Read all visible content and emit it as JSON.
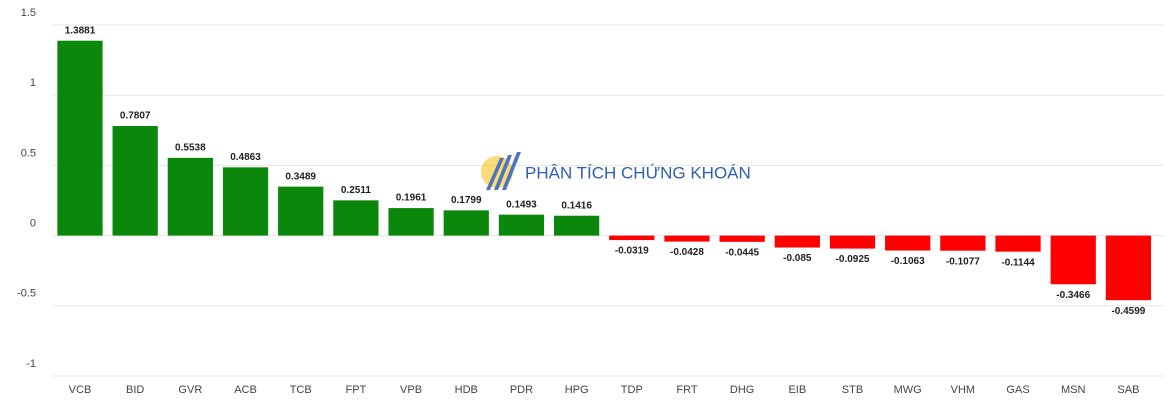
{
  "chart_data": {
    "type": "bar",
    "watermark": "PHÂN TÍCH CHỨNG KHOÁN",
    "categories": [
      "VCB",
      "BID",
      "GVR",
      "ACB",
      "TCB",
      "FPT",
      "VPB",
      "HDB",
      "PDR",
      "HPG",
      "TDP",
      "FRT",
      "DHG",
      "EIB",
      "STB",
      "MWG",
      "VHM",
      "GAS",
      "MSN",
      "SAB"
    ],
    "values": [
      1.3881,
      0.7807,
      0.5538,
      0.4863,
      0.3489,
      0.2511,
      0.1961,
      0.1799,
      0.1493,
      0.1416,
      -0.0319,
      -0.0428,
      -0.0445,
      -0.085,
      -0.0925,
      -0.1063,
      -0.1077,
      -0.1144,
      -0.3466,
      -0.4599
    ],
    "positive_color": "#0b870b",
    "negative_color": "#ff0000",
    "ylim": [
      -1,
      1.5
    ],
    "yticks": [
      -1,
      -0.5,
      0,
      0.5,
      1,
      1.5
    ],
    "grid": true
  }
}
